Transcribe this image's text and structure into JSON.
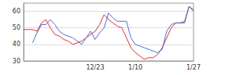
{
  "chart_data": {
    "type": "line",
    "categories": [
      null,
      null,
      null,
      null,
      null,
      null,
      null,
      null,
      null,
      null,
      null,
      null,
      null,
      null,
      null,
      null,
      "12/23",
      null,
      null,
      null,
      null,
      null,
      null,
      null,
      null,
      "1/10",
      null,
      null,
      null,
      null,
      null,
      null,
      null,
      null,
      null,
      null,
      null,
      null,
      "1/27"
    ],
    "series": [
      {
        "color": "#e03030",
        "values": [
          49,
          49,
          49,
          48,
          53,
          55,
          50,
          46,
          45,
          43,
          42,
          40,
          41,
          42,
          44,
          46,
          48,
          52,
          58,
          55,
          53,
          51,
          50,
          44,
          38,
          35,
          33,
          31,
          32,
          32,
          34,
          38,
          44,
          50,
          53,
          53,
          54,
          63,
          60
        ]
      },
      {
        "color": "#4a6fd8",
        "values": [
          null,
          null,
          41,
          47,
          52,
          52,
          55,
          52,
          48,
          46,
          45,
          44,
          42,
          40,
          44,
          48,
          43,
          47,
          50,
          59,
          56,
          54,
          54,
          54,
          44,
          40,
          39,
          38,
          37,
          36,
          35,
          37,
          48,
          52,
          53,
          53,
          53,
          63,
          61
        ]
      }
    ],
    "ylim": [
      30,
      65
    ],
    "yticks": [
      30,
      40,
      50,
      60
    ],
    "grid": true
  }
}
